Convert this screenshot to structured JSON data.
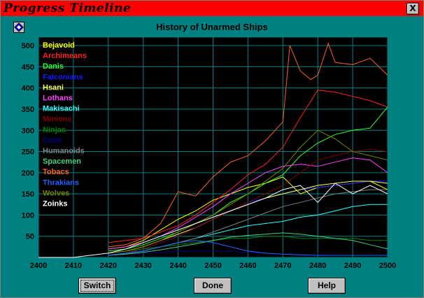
{
  "window": {
    "title": "Progress Timeline",
    "close_label": "X"
  },
  "buttons": {
    "switch_label": "Switch",
    "done_label": "Done",
    "help_label": "Help"
  },
  "colors": {
    "window_bg": "#008080",
    "titlebar": "#ff0000",
    "plot_bg": "#000000",
    "grid": "#008080"
  },
  "chart_data": {
    "type": "line",
    "title": "History of Unarmed Ships",
    "xlabel": "",
    "ylabel": "",
    "xlim": [
      2400,
      2500
    ],
    "ylim": [
      0,
      520
    ],
    "xticks": [
      2400,
      2410,
      2420,
      2430,
      2440,
      2450,
      2460,
      2470,
      2480,
      2490,
      2500
    ],
    "yticks": [
      50,
      100,
      150,
      200,
      250,
      300,
      350,
      400,
      450,
      500
    ],
    "grid": true,
    "legend": "top-left",
    "series": [
      {
        "name": "Bejavoid",
        "color": "#ffff00",
        "x": [
          2420,
          2425,
          2430,
          2435,
          2440,
          2445,
          2450,
          2455,
          2460,
          2465,
          2470,
          2475,
          2480,
          2485,
          2490,
          2495,
          2500
        ],
        "y": [
          20,
          25,
          40,
          65,
          90,
          110,
          135,
          150,
          165,
          175,
          190,
          150,
          165,
          170,
          175,
          180,
          160
        ]
      },
      {
        "name": "Archimeans",
        "color": "#ff2020",
        "x": [
          2420,
          2425,
          2430,
          2435,
          2440,
          2445,
          2450,
          2455,
          2460,
          2465,
          2470,
          2475,
          2480,
          2485,
          2490,
          2495,
          2500
        ],
        "y": [
          35,
          40,
          45,
          60,
          75,
          100,
          130,
          160,
          195,
          220,
          260,
          330,
          395,
          390,
          380,
          370,
          355
        ]
      },
      {
        "name": "Danis",
        "color": "#30ff30",
        "x": [
          2420,
          2425,
          2430,
          2435,
          2440,
          2445,
          2450,
          2455,
          2460,
          2465,
          2470,
          2475,
          2480,
          2485,
          2490,
          2495,
          2500
        ],
        "y": [
          15,
          20,
          30,
          45,
          60,
          80,
          100,
          130,
          150,
          175,
          195,
          240,
          270,
          290,
          300,
          305,
          355
        ]
      },
      {
        "name": "Falconians",
        "color": "#1818ff",
        "x": [
          2420,
          2425,
          2430,
          2435,
          2440,
          2445,
          2450,
          2455,
          2460,
          2465,
          2470,
          2475,
          2480,
          2485,
          2490,
          2495,
          2500
        ],
        "y": [
          5,
          10,
          20,
          35,
          50,
          70,
          90,
          110,
          130,
          140,
          150,
          160,
          165,
          170,
          175,
          180,
          180
        ]
      },
      {
        "name": "Hsani",
        "color": "#ffff60",
        "x": [
          2420,
          2425,
          2430,
          2435,
          2440,
          2445,
          2450,
          2455,
          2460,
          2465,
          2470,
          2475,
          2480,
          2485,
          2490,
          2495,
          2500
        ],
        "y": [
          10,
          15,
          25,
          40,
          55,
          70,
          90,
          110,
          125,
          140,
          150,
          160,
          170,
          175,
          180,
          180,
          175
        ]
      },
      {
        "name": "Lothans",
        "color": "#ff40ff",
        "x": [
          2420,
          2425,
          2430,
          2435,
          2440,
          2445,
          2450,
          2455,
          2460,
          2465,
          2470,
          2475,
          2480,
          2485,
          2490,
          2495,
          2500
        ],
        "y": [
          20,
          25,
          35,
          50,
          70,
          95,
          120,
          150,
          175,
          200,
          215,
          220,
          215,
          225,
          235,
          230,
          200
        ]
      },
      {
        "name": "Makisachi",
        "color": "#30ffff",
        "x": [
          2420,
          2425,
          2430,
          2435,
          2440,
          2445,
          2450,
          2455,
          2460,
          2465,
          2470,
          2475,
          2480,
          2485,
          2490,
          2495,
          2500
        ],
        "y": [
          5,
          10,
          15,
          25,
          35,
          45,
          55,
          65,
          75,
          80,
          85,
          95,
          100,
          110,
          120,
          125,
          125
        ]
      },
      {
        "name": "Minions",
        "color": "#800000",
        "x": [
          2420,
          2425,
          2430,
          2435,
          2440,
          2445,
          2450,
          2455,
          2460,
          2465,
          2470,
          2475,
          2480,
          2485,
          2490,
          2495,
          2500
        ],
        "y": [
          5,
          10,
          20,
          35,
          50,
          70,
          90,
          110,
          130,
          150,
          170,
          200,
          230,
          240,
          250,
          255,
          250
        ]
      },
      {
        "name": "Ninjas",
        "color": "#008000",
        "x": [
          2420,
          2425,
          2430,
          2435,
          2440,
          2445,
          2450,
          2455,
          2460,
          2465,
          2470,
          2475,
          2480,
          2485,
          2490,
          2495,
          2500
        ],
        "y": [
          10,
          15,
          20,
          25,
          30,
          35,
          40,
          45,
          45,
          50,
          50,
          45,
          45,
          45,
          45,
          40,
          40
        ]
      },
      {
        "name": "Ootsi",
        "color": "#000080",
        "x": [
          2420,
          2425,
          2430,
          2435,
          2440,
          2445,
          2450,
          2455,
          2460,
          2465,
          2470,
          2475,
          2480,
          2485,
          2490,
          2495,
          2500
        ],
        "y": [
          5,
          8,
          10,
          12,
          14,
          15,
          15,
          14,
          12,
          10,
          8,
          7,
          6,
          5,
          5,
          5,
          5
        ]
      },
      {
        "name": "Humanoids",
        "color": "#808080",
        "x": [
          2420,
          2425,
          2430,
          2435,
          2440,
          2445,
          2450,
          2455,
          2460,
          2465,
          2470,
          2475,
          2480,
          2485,
          2490,
          2495,
          2500
        ],
        "y": [
          5,
          10,
          15,
          25,
          35,
          45,
          60,
          75,
          90,
          105,
          120,
          130,
          140,
          150,
          155,
          160,
          160
        ]
      },
      {
        "name": "Spacemen",
        "color": "#40d080",
        "x": [
          2420,
          2425,
          2430,
          2435,
          2440,
          2445,
          2450,
          2455,
          2460,
          2465,
          2470,
          2475,
          2480,
          2485,
          2490,
          2495,
          2500
        ],
        "y": [
          5,
          8,
          12,
          18,
          25,
          32,
          40,
          48,
          52,
          55,
          58,
          55,
          50,
          45,
          40,
          30,
          20
        ]
      },
      {
        "name": "Tobacs",
        "color": "#ff6020",
        "x": [
          2420,
          2425,
          2430,
          2435,
          2440,
          2445,
          2450,
          2455,
          2460,
          2465,
          2470,
          2472,
          2475,
          2478,
          2480,
          2483,
          2485,
          2490,
          2495,
          2500
        ],
        "y": [
          25,
          30,
          45,
          80,
          155,
          145,
          190,
          225,
          240,
          275,
          320,
          500,
          440,
          420,
          430,
          505,
          460,
          455,
          470,
          430
        ]
      },
      {
        "name": "Thrakians",
        "color": "#2060ff",
        "x": [
          2420,
          2425,
          2430,
          2435,
          2440,
          2445,
          2450,
          2455,
          2460,
          2465,
          2470,
          2475,
          2480,
          2485,
          2490,
          2495,
          2500
        ],
        "y": [
          5,
          10,
          15,
          25,
          35,
          40,
          35,
          25,
          15,
          10,
          8,
          6,
          5,
          5,
          5,
          5,
          5
        ]
      },
      {
        "name": "Wolves",
        "color": "#808000",
        "x": [
          2420,
          2425,
          2430,
          2435,
          2440,
          2445,
          2450,
          2455,
          2460,
          2465,
          2470,
          2475,
          2480,
          2485,
          2490,
          2495,
          2500
        ],
        "y": [
          10,
          15,
          25,
          40,
          60,
          80,
          100,
          125,
          150,
          180,
          210,
          260,
          300,
          280,
          250,
          240,
          230
        ]
      },
      {
        "name": "Zoinks",
        "color": "#ffffff",
        "x": [
          2400,
          2410,
          2420,
          2425,
          2430,
          2435,
          2440,
          2445,
          2450,
          2455,
          2460,
          2465,
          2470,
          2475,
          2480,
          2485,
          2490,
          2495,
          2500
        ],
        "y": [
          0,
          0,
          10,
          20,
          35,
          50,
          65,
          80,
          95,
          110,
          125,
          140,
          160,
          170,
          130,
          175,
          150,
          170,
          150
        ]
      }
    ]
  }
}
